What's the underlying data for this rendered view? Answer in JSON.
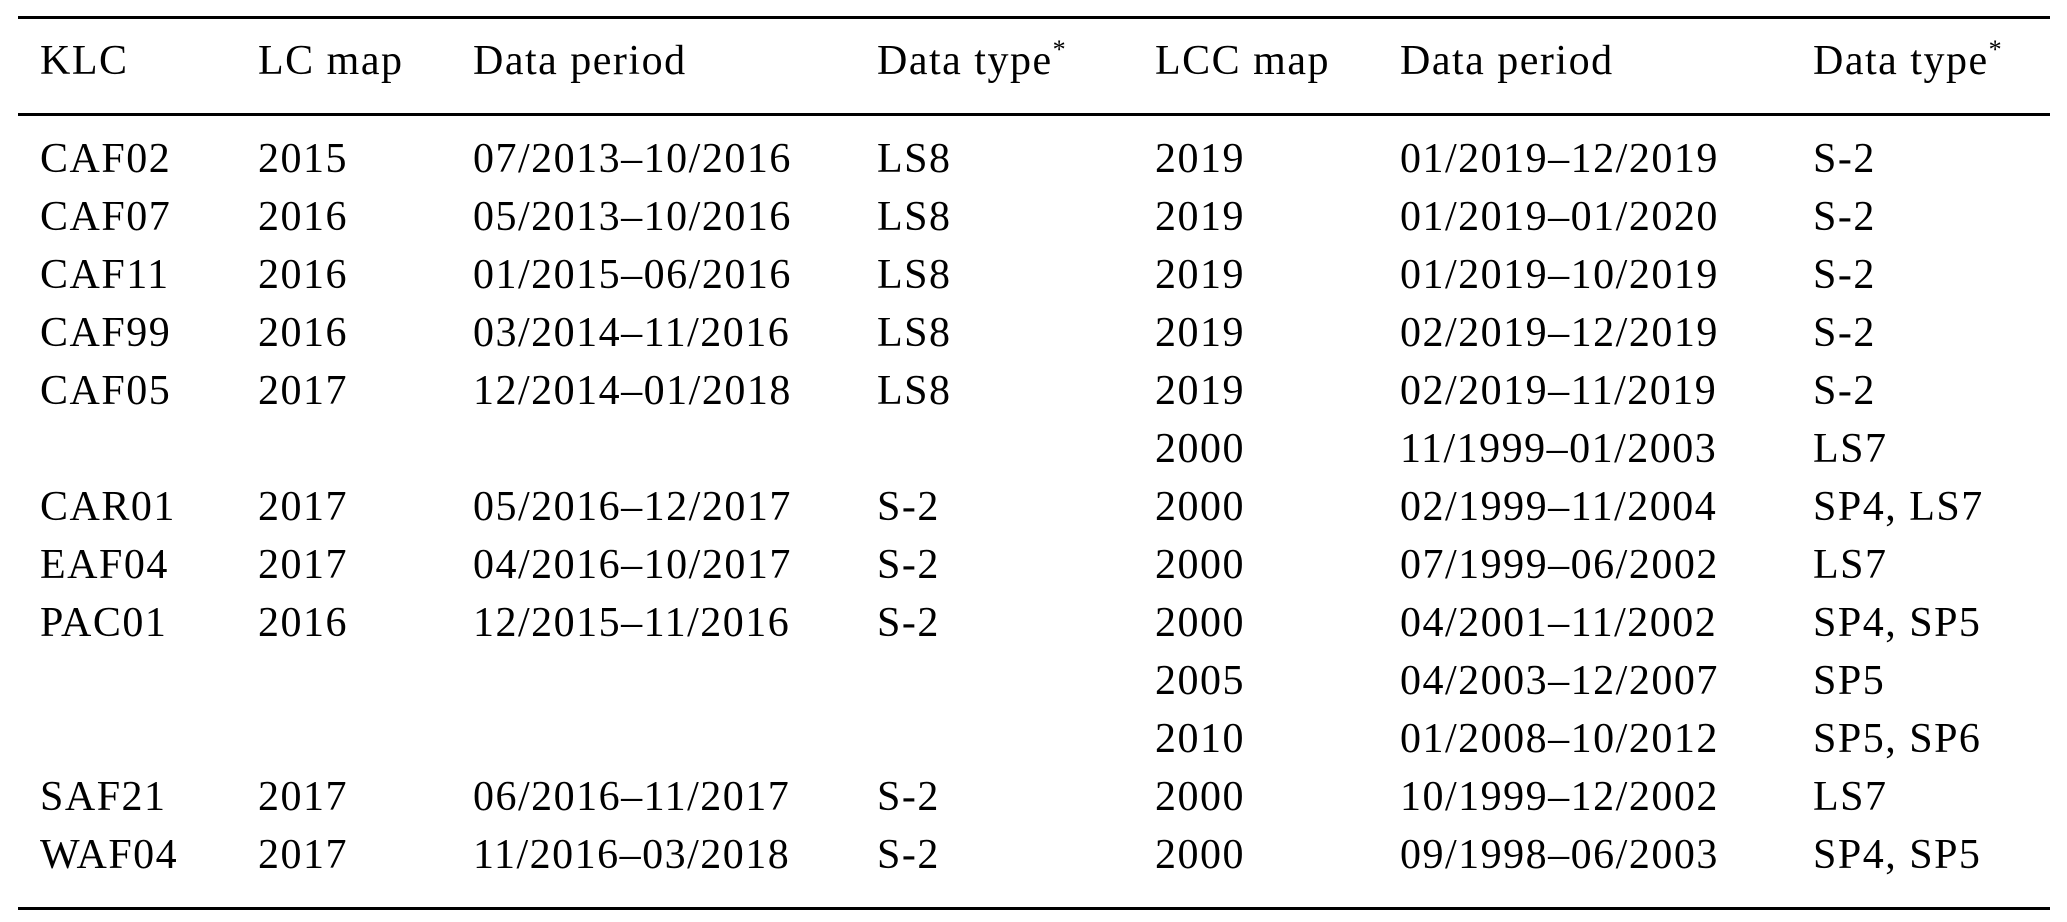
{
  "colors": {
    "text": "#000000",
    "background": "#ffffff",
    "rule": "#000000"
  },
  "table": {
    "columns": [
      {
        "id": "klc",
        "label": "KLC"
      },
      {
        "id": "lc-map",
        "label": "LC map"
      },
      {
        "id": "lc-data-period",
        "label": "Data period"
      },
      {
        "id": "lc-data-type",
        "label": "Data type",
        "sup": "*"
      },
      {
        "id": "lcc-map",
        "label": "LCC map"
      },
      {
        "id": "lcc-data-period",
        "label": "Data period"
      },
      {
        "id": "lcc-data-type",
        "label": "Data type",
        "sup": "*"
      }
    ],
    "rows": [
      [
        "CAF02",
        "2015",
        "07/2013–10/2016",
        "LS8",
        "2019",
        "01/2019–12/2019",
        "S-2"
      ],
      [
        "CAF07",
        "2016",
        "05/2013–10/2016",
        "LS8",
        "2019",
        "01/2019–01/2020",
        "S-2"
      ],
      [
        "CAF11",
        "2016",
        "01/2015–06/2016",
        "LS8",
        "2019",
        "01/2019–10/2019",
        "S-2"
      ],
      [
        "CAF99",
        "2016",
        "03/2014–11/2016",
        "LS8",
        "2019",
        "02/2019–12/2019",
        "S-2"
      ],
      [
        "CAF05",
        "2017",
        "12/2014–01/2018",
        "LS8",
        "2019",
        "02/2019–11/2019",
        "S-2"
      ],
      [
        "",
        "",
        "",
        "",
        "2000",
        "11/1999–01/2003",
        "LS7"
      ],
      [
        "CAR01",
        "2017",
        "05/2016–12/2017",
        "S-2",
        "2000",
        "02/1999–11/2004",
        "SP4, LS7"
      ],
      [
        "EAF04",
        "2017",
        "04/2016–10/2017",
        "S-2",
        "2000",
        "07/1999–06/2002",
        "LS7"
      ],
      [
        "PAC01",
        "2016",
        "12/2015–11/2016",
        "S-2",
        "2000",
        "04/2001–11/2002",
        "SP4, SP5"
      ],
      [
        "",
        "",
        "",
        "",
        "2005",
        "04/2003–12/2007",
        "SP5"
      ],
      [
        "",
        "",
        "",
        "",
        "2010",
        "01/2008–10/2012",
        "SP5, SP6"
      ],
      [
        "SAF21",
        "2017",
        "06/2016–11/2017",
        "S-2",
        "2000",
        "10/1999–12/2002",
        "LS7"
      ],
      [
        "WAF04",
        "2017",
        "11/2016–03/2018",
        "S-2",
        "2000",
        "09/1998–06/2003",
        "SP4, SP5"
      ]
    ]
  }
}
